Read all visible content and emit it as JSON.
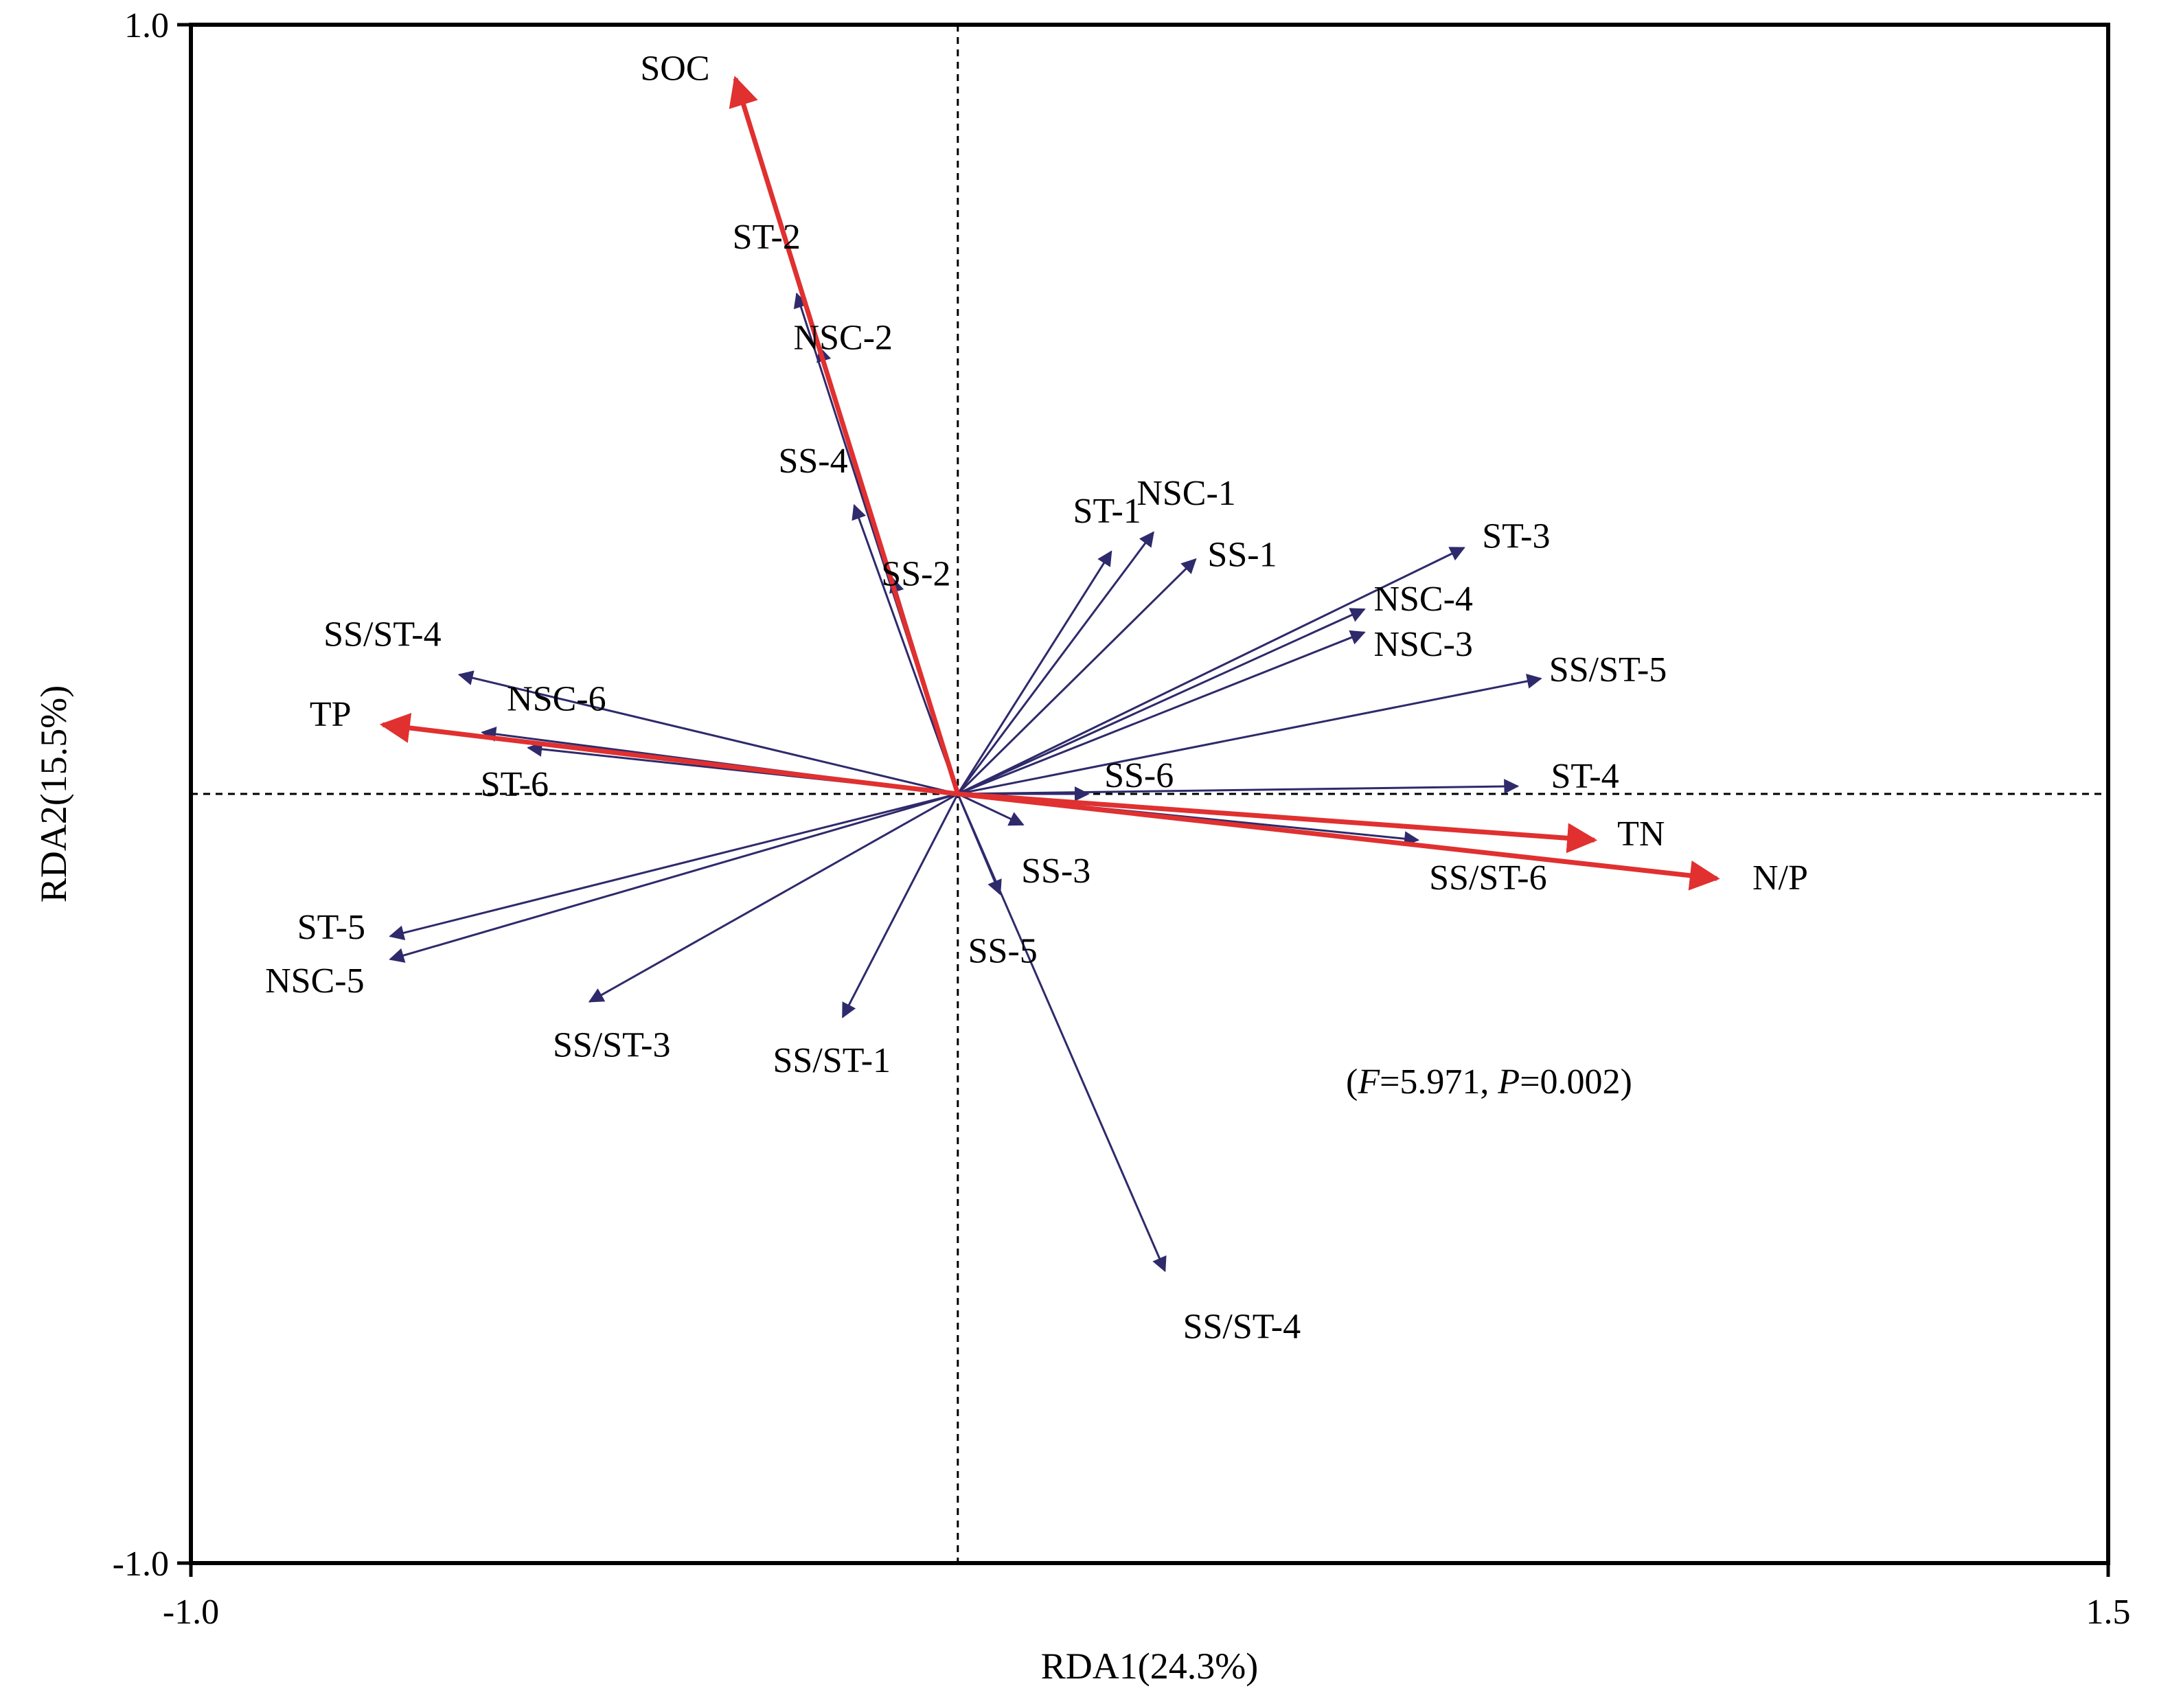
{
  "chart_data": {
    "type": "scatter",
    "subtype": "rda-biplot",
    "title": "",
    "xlabel": "RDA1(24.3%)",
    "ylabel": "RDA2(15.5%)",
    "xlim": [
      -1.0,
      1.5
    ],
    "ylim": [
      -1.0,
      1.0
    ],
    "xticks": [
      "-1.0",
      "1.5"
    ],
    "yticks": [
      "1.0",
      "-1.0"
    ],
    "grid": false,
    "zero_lines": true,
    "annotation": {
      "F_label": "F",
      "F_value": "=5.971, ",
      "P_label": "P",
      "P_value": "=0.002)",
      "open": "("
    },
    "colors": {
      "species": "#2e2a6b",
      "environment": "#e03030"
    },
    "environmental_vectors": [
      {
        "label": "SOC",
        "x": -0.29,
        "y": 0.93
      },
      {
        "label": "TP",
        "x": -0.75,
        "y": 0.09
      },
      {
        "label": "TN",
        "x": 0.83,
        "y": -0.06
      },
      {
        "label": "N/P",
        "x": 0.99,
        "y": -0.11
      }
    ],
    "species_vectors": [
      {
        "label": "ST-2",
        "x": -0.21,
        "y": 0.65
      },
      {
        "label": "NSC-2",
        "x": -0.18,
        "y": 0.58
      },
      {
        "label": "SS-4",
        "x": -0.135,
        "y": 0.375
      },
      {
        "label": "SS-2",
        "x": -0.085,
        "y": 0.28
      },
      {
        "label": "ST-1",
        "x": 0.2,
        "y": 0.315
      },
      {
        "label": "NSC-1",
        "x": 0.255,
        "y": 0.34
      },
      {
        "label": "SS-1",
        "x": 0.31,
        "y": 0.305
      },
      {
        "label": "ST-3",
        "x": 0.66,
        "y": 0.32
      },
      {
        "label": "NSC-4",
        "x": 0.53,
        "y": 0.24
      },
      {
        "label": "NSC-3",
        "x": 0.53,
        "y": 0.21
      },
      {
        "label": "SS/ST-5",
        "x": 0.76,
        "y": 0.15
      },
      {
        "label": "ST-4",
        "x": 0.73,
        "y": 0.01
      },
      {
        "label": "SS-6",
        "x": 0.17,
        "y": 0.0
      },
      {
        "label": "SS/ST-6",
        "x": 0.6,
        "y": -0.06
      },
      {
        "label": "SS-3",
        "x": 0.085,
        "y": -0.04
      },
      {
        "label": "SS-5",
        "x": 0.055,
        "y": -0.13
      },
      {
        "label": "SS/ST-4",
        "x": 0.27,
        "y": -0.62
      },
      {
        "label": "SS/ST-1",
        "x": -0.15,
        "y": -0.29
      },
      {
        "label": "SS/ST-3",
        "x": -0.48,
        "y": -0.27
      },
      {
        "label": "NSC-5",
        "x": -0.74,
        "y": -0.215
      },
      {
        "label": "ST-5",
        "x": -0.74,
        "y": -0.185
      },
      {
        "label": "ST-6",
        "x": -0.56,
        "y": 0.06
      },
      {
        "label": "SS/ST-4",
        "x": -0.65,
        "y": 0.155
      },
      {
        "label": "NSC-6",
        "x": -0.62,
        "y": 0.08
      }
    ]
  }
}
